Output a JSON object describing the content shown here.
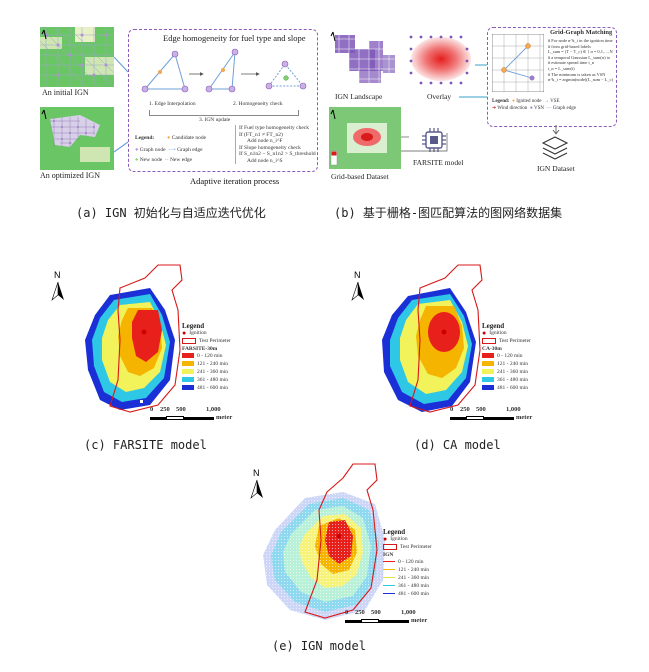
{
  "top_a": {
    "initial_label": "An initial IGN",
    "optimized_label": "An optimized IGN",
    "box_title": "Edge homogeneity for fuel type and slope",
    "steps": [
      "1. Edge Interpolation",
      "2. Homogeneity check",
      "3. IGN update"
    ],
    "legend_title": "Legend:",
    "legend_items": [
      "Candidate node",
      "Graph node",
      "Graph edge",
      "New node",
      "New edge"
    ],
    "conditions": [
      "If Fuel type homogeneity check",
      "If (FT_n1 ≠ FT_n2)",
      "Add node n_i^F",
      "If Slope homogeneity check",
      "If S_n1n2 − S_n1n2 > S_threshold",
      "Add node n_i^S"
    ],
    "process_label": "Adaptive iteration process",
    "caption": "(a) IGN 初始化与自适应迭代优化"
  },
  "top_b": {
    "landscape_label": "IGN Landscape",
    "overlay_label": "Overlay",
    "grid_dataset_label": "Grid-based Dataset",
    "farsite_label": "FARSITE model",
    "ign_dataset_label": "IGN Dataset",
    "matching_title": "Grid-Graph Matching",
    "matching_lines": [
      "# For node n^k_i in the ignition time",
      "# from grid-based labels",
      "L_sum = (T − T_c) ∈ { α = 0,1,…,N",
      "# a temporal Gaussian L_sum(n) to",
      "# estimate spread time t_n",
      "t_n = L_sum(t)",
      "# The minimum is taken as VSN",
      "n^k_i = argmin(node)(L_sum − L_c)"
    ],
    "legend_title": "Legend:",
    "legend_items": [
      "Ignited node",
      "VSE",
      "Wind direction",
      "VSN",
      "Graph edge"
    ],
    "caption": "(b) 基于栅格-图匹配算法的图网络数据集"
  },
  "map_legend": {
    "title": "Legend",
    "ignition": "Ignition",
    "perimeter": "Test Perimeter",
    "class_ranges": [
      "0 - 120 min",
      "121 - 240 min",
      "241 - 360 min",
      "361 - 480 min",
      "481 - 600 min"
    ],
    "scale_ticks": [
      "0",
      "250",
      "500",
      "1,000"
    ],
    "scale_unit": "meter",
    "north": "N"
  },
  "maps": [
    {
      "id": "c",
      "series_title": "FARSITE-30m",
      "caption": "(c) FARSITE model"
    },
    {
      "id": "d",
      "series_title": "CA-30m",
      "caption": "(d) CA model"
    },
    {
      "id": "e",
      "series_title": "IGN",
      "caption": "(e) IGN model"
    }
  ],
  "colors": {
    "class_colors": [
      "#e8201c",
      "#f5b400",
      "#f2f25a",
      "#2fc7e6",
      "#1a2fd6"
    ],
    "perimeter": "#d81818",
    "dash_border": "#8a5bb8",
    "tile_green": "#5fbf5a"
  }
}
